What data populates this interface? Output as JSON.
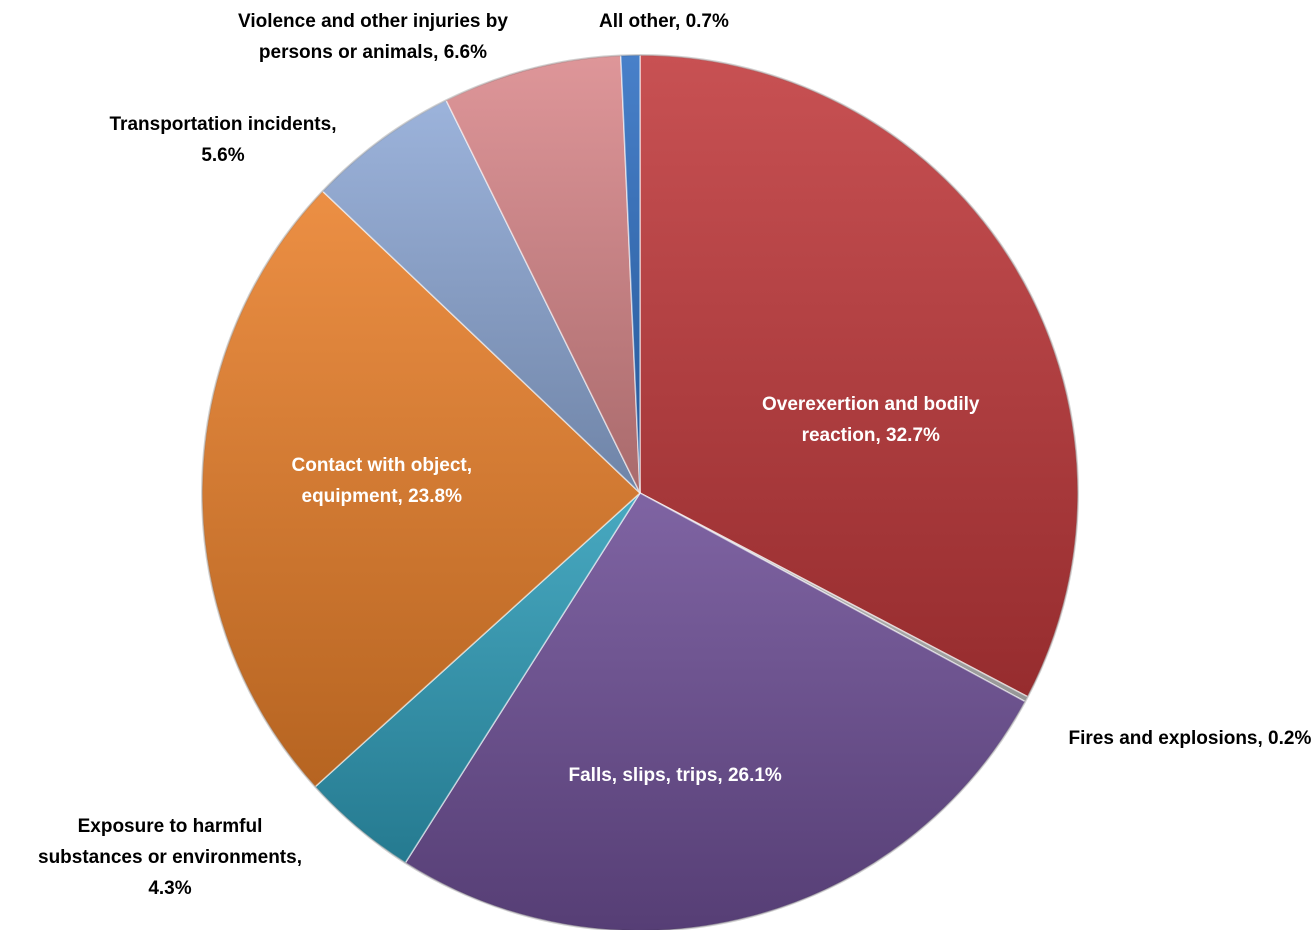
{
  "chart_data": {
    "type": "pie",
    "slices": [
      {
        "label": "Overexertion and bodily\nreaction, 32.7%",
        "value": 32.7,
        "color": "#c0393b"
      },
      {
        "label": "Fires and explosions, 0.2%",
        "value": 0.2,
        "color": "#bfbfbf"
      },
      {
        "label": "Falls, slips, trips, 26.1%",
        "value": 26.1,
        "color": "#6e4f96"
      },
      {
        "label": "Exposure to harmful\nsubstances or environments,\n4.3%",
        "value": 4.3,
        "color": "#2f9db8"
      },
      {
        "label": "Contact with object,\nequipment, 23.8%",
        "value": 23.8,
        "color": "#e9802a"
      },
      {
        "label": "Transportation incidents,\n5.6%",
        "value": 5.6,
        "color": "#8ea9d6"
      },
      {
        "label": "Violence and other injuries by\npersons or animals, 6.6%",
        "value": 6.6,
        "color": "#d9888b"
      },
      {
        "label": "All other, 0.7%",
        "value": 0.7,
        "color": "#2f6fc2"
      }
    ]
  }
}
